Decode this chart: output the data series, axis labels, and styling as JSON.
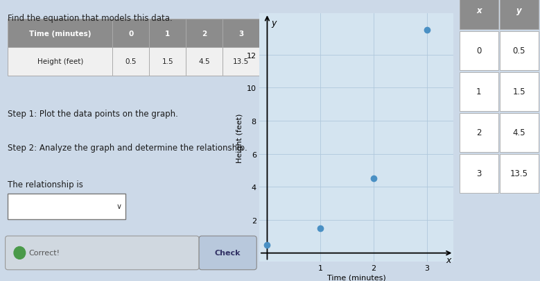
{
  "title": "Find the equation that models this data.",
  "table_headers": [
    "Time (minutes)",
    "0",
    "1",
    "2",
    "3"
  ],
  "table_row": [
    "Height (feet)",
    "0.5",
    "1.5",
    "4.5",
    "13.5"
  ],
  "step1": "Step 1: Plot the data points on the graph.",
  "step2": "Step 2: Analyze the graph and determine the relationship.",
  "relationship_label": "The relationship is",
  "x_data": [
    0,
    1,
    2,
    3
  ],
  "y_data": [
    0.5,
    1.5,
    4.5,
    13.5
  ],
  "x_label": "Time (minutes)",
  "y_label": "Height (feet)",
  "x_axis_label": "x",
  "y_axis_label": "y",
  "xlim": [
    -0.15,
    3.5
  ],
  "ylim": [
    -0.5,
    14.5
  ],
  "xticks": [
    1,
    2,
    3
  ],
  "yticks": [
    2,
    4,
    6,
    8,
    10,
    12
  ],
  "dot_color": "#4a90c4",
  "bg_color": "#ccd9e8",
  "left_bg": "#dce8f0",
  "graph_bg": "#d4e4f0",
  "grid_color": "#b0c8dc",
  "table_header_bg": "#8c8c8c",
  "table_header_text": "#ffffff",
  "table_cell_bg": "#f0f0f0",
  "table_border": "#aaaaaa",
  "side_table_x": [
    "x",
    "0",
    "1",
    "2",
    "3"
  ],
  "side_table_y": [
    "y",
    "0.5",
    "1.5",
    "4.5",
    "13.5"
  ],
  "button_text": "Check",
  "correct_text": "Correct!",
  "check_btn_color": "#b8c8dc",
  "correct_bg": "#d0d8e0"
}
